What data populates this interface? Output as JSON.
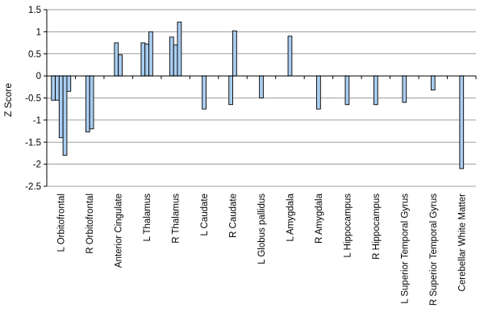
{
  "chart_data": {
    "type": "bar",
    "ylabel": "Z Score",
    "ylim": [
      -2.5,
      1.5
    ],
    "yticks": [
      "1.5",
      "1",
      "0.5",
      "0",
      "-0.5",
      "-1",
      "-1.5",
      "-2",
      "-2.5"
    ],
    "ytick_values": [
      1.5,
      1,
      0.5,
      0,
      -0.5,
      -1,
      -1.5,
      -2,
      -2.5
    ],
    "grid": true,
    "bar_color": "#a9cdf0",
    "categories": [
      "L Orbitofrontal",
      "R Orbitofrontal",
      "Anterior Cingulate",
      "L Thalamus",
      "R Thalamus",
      "L Caudate",
      "R Caudate",
      "L Globus pallidus",
      "L Amygdala",
      "R Amygdala",
      "L Hippocampus",
      "R Hippocampus",
      "L Superior Temporal Gyrus",
      "R Superior Temporal Gyrus",
      "Cerebellar White Matter"
    ],
    "values": [
      [
        -0.55,
        -0.55,
        -1.4,
        -1.8,
        -0.35
      ],
      [
        -1.27,
        -1.2
      ],
      [
        0.75,
        0.48
      ],
      [
        0.75,
        0.72,
        1.0
      ],
      [
        0.88,
        0.7,
        1.22
      ],
      [
        -0.75
      ],
      [
        -0.65,
        1.02
      ],
      [
        -0.5
      ],
      [
        0.9
      ],
      [
        -0.75
      ],
      [
        -0.65
      ],
      [
        -0.65
      ],
      [
        -0.6
      ],
      [
        -0.32
      ],
      [
        -2.1
      ]
    ]
  }
}
